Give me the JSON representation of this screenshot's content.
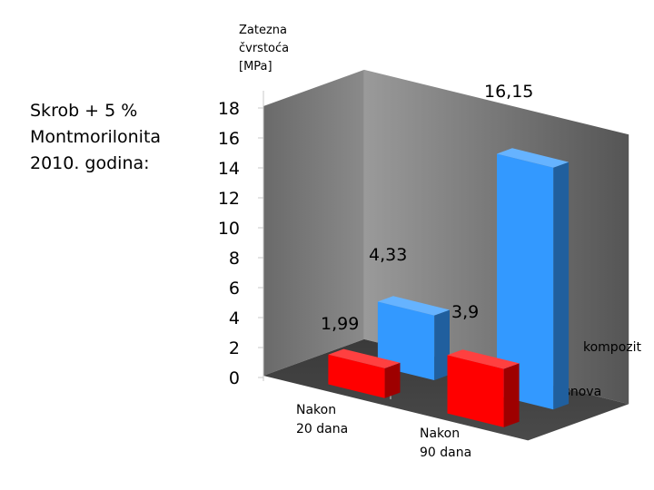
{
  "slide": {
    "title_lines": [
      "Skrob + 5 %",
      "Montmorilonita",
      "2010. godina:"
    ]
  },
  "chart_data": {
    "type": "bar",
    "style": "3d-column",
    "ylabel_lines": [
      "Zatezna",
      "čvrstoća",
      "[MPa]"
    ],
    "ylim": [
      0,
      18
    ],
    "yticks": [
      "0",
      "2",
      "4",
      "6",
      "8",
      "10",
      "12",
      "14",
      "16",
      "18"
    ],
    "categories": [
      {
        "lines": [
          "Nakon",
          "20 dana"
        ]
      },
      {
        "lines": [
          "Nakon",
          "90 dana"
        ]
      }
    ],
    "series": [
      {
        "name": "osnova",
        "color": "#ff0000",
        "values": [
          1.99,
          3.9
        ],
        "labels": [
          "1,99",
          "3,9"
        ]
      },
      {
        "name": "kompozit",
        "color": "#3399ff",
        "values": [
          4.33,
          16.15
        ],
        "labels": [
          "4,33",
          "16,15"
        ]
      }
    ],
    "grid": false,
    "legend": "depth-axis-labels-right"
  }
}
